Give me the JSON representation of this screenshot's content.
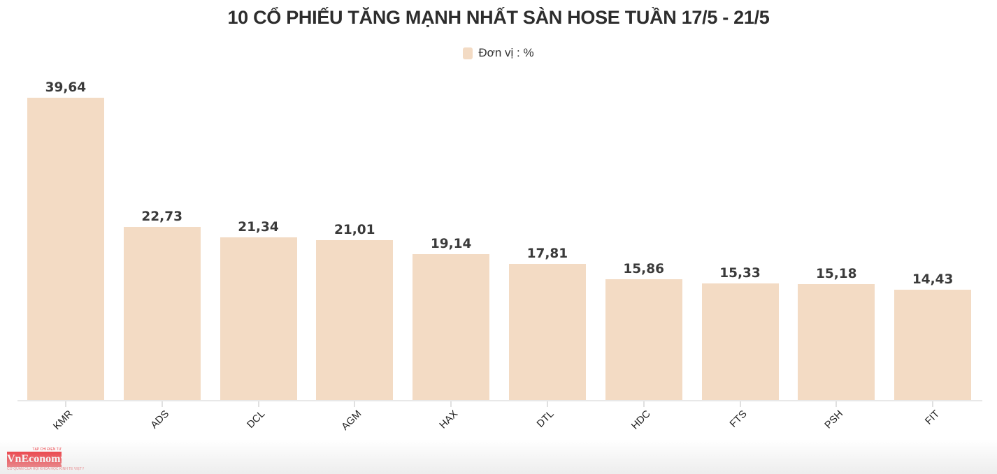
{
  "chart_data": {
    "type": "bar",
    "title": "10 CỔ PHIẾU TĂNG MẠNH NHẤT SÀN HOSE TUẦN 17/5 - 21/5",
    "legend": {
      "label": "Đơn vị : %",
      "position": "top-center"
    },
    "unit": "%",
    "categories": [
      "KMR",
      "ADS",
      "DCL",
      "AGM",
      "HAX",
      "DTL",
      "HDC",
      "FTS",
      "PSH",
      "FIT"
    ],
    "values": [
      39.64,
      22.73,
      21.34,
      21.01,
      19.14,
      17.81,
      15.86,
      15.33,
      15.18,
      14.43
    ],
    "value_labels": [
      "39,64",
      "22,73",
      "21,34",
      "21,01",
      "19,14",
      "17,81",
      "15,86",
      "15,33",
      "15,18",
      "14,43"
    ],
    "xlabel": "",
    "ylabel": "",
    "ylim": [
      0,
      39.64
    ],
    "grid": false,
    "bar_color": "#f3dbc4",
    "axis_color": "#e8e8e8",
    "tick_color": "#e0e0e0",
    "value_label_color": "#3a3a3a",
    "category_label_color": "#1f1f1f",
    "title_color": "#2d2d2d"
  },
  "logo": {
    "name": "VnEconomy",
    "top_text": "TẠP CHÍ ĐIỆN TỬ",
    "tagline": "CƠ QUAN CỦA HỘI KHOA HỌC KINH TẾ VIỆT NAM",
    "brand_red": "#ed1c24"
  }
}
